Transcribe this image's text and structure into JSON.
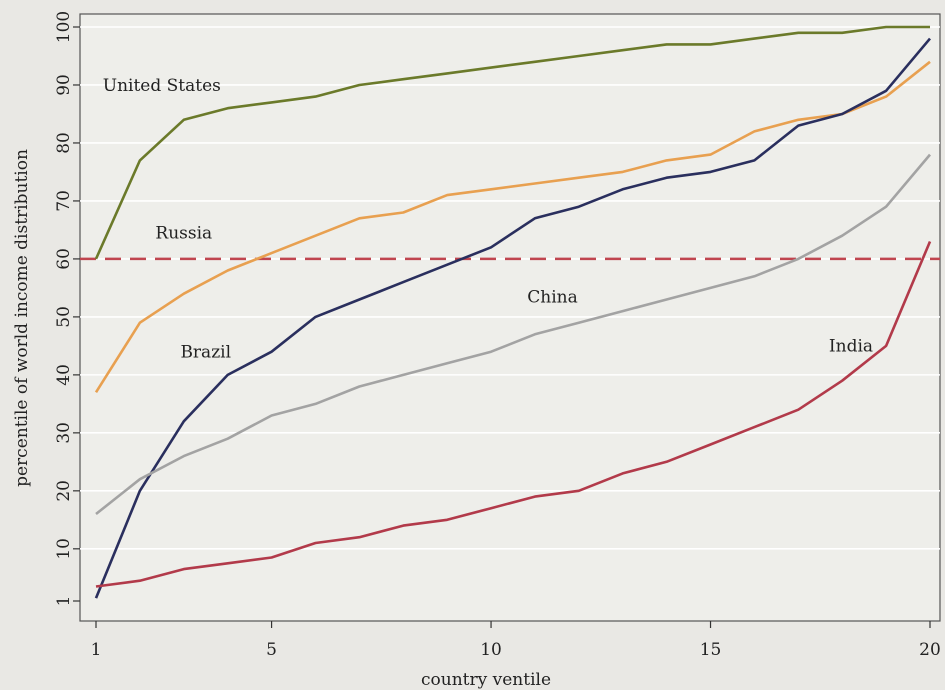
{
  "chart_data": {
    "type": "line",
    "title": "",
    "xlabel": "country ventile",
    "ylabel": "percentile of world income distribution",
    "xlim": [
      1,
      20
    ],
    "ylim": [
      1,
      100
    ],
    "x_ticks": [
      1,
      5,
      10,
      15,
      20
    ],
    "y_ticks": [
      1,
      10,
      20,
      30,
      40,
      50,
      60,
      70,
      80,
      90,
      100
    ],
    "grid": "horizontal",
    "x": [
      1,
      2,
      3,
      4,
      5,
      6,
      7,
      8,
      9,
      10,
      11,
      12,
      13,
      14,
      15,
      16,
      17,
      18,
      19,
      20
    ],
    "series": [
      {
        "name": "United States",
        "color": "#6b7a2a",
        "label_pos": [
          2.5,
          89
        ],
        "values": [
          60,
          77,
          84,
          86,
          87,
          88,
          90,
          91,
          92,
          93,
          94,
          95,
          96,
          97,
          97,
          98,
          99,
          99,
          100,
          100
        ]
      },
      {
        "name": "Russia",
        "color": "#e8a050",
        "label_pos": [
          3.0,
          63.5
        ],
        "values": [
          37,
          49,
          54,
          58,
          61,
          64,
          67,
          68,
          71,
          72,
          73,
          74,
          75,
          77,
          78,
          82,
          84,
          85,
          88,
          94
        ]
      },
      {
        "name": "Brazil",
        "color": "#2a2f5e",
        "label_pos": [
          3.5,
          43
        ],
        "values": [
          1.5,
          20,
          32,
          40,
          44,
          50,
          53,
          56,
          59,
          62,
          67,
          69,
          72,
          74,
          75,
          77,
          83,
          85,
          89,
          98
        ]
      },
      {
        "name": "China",
        "color": "#a3a3a3",
        "label_pos": [
          11.4,
          52.5
        ],
        "values": [
          16,
          22,
          26,
          29,
          33,
          35,
          38,
          40,
          42,
          44,
          47,
          49,
          51,
          53,
          55,
          57,
          60,
          64,
          69,
          78
        ]
      },
      {
        "name": "India",
        "color": "#b23a4a",
        "label_pos": [
          18.2,
          44
        ],
        "values": [
          3.5,
          4.5,
          6.5,
          7.5,
          8.5,
          11,
          12,
          14,
          15,
          17,
          19,
          20,
          23,
          25,
          28,
          31,
          34,
          39,
          45,
          63
        ]
      }
    ],
    "reference_line": {
      "y": 60,
      "color": "#c0454f",
      "style": "dashed"
    }
  }
}
